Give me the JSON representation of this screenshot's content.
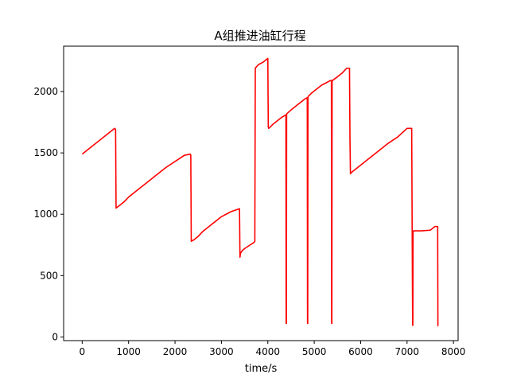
{
  "chart_data": {
    "type": "line",
    "title": "A组推进油缸行程",
    "xlabel": "time/s",
    "ylabel": "",
    "xlim": [
      -400,
      8100
    ],
    "ylim": [
      -30,
      2370
    ],
    "xticks": [
      0,
      1000,
      2000,
      3000,
      4000,
      5000,
      6000,
      7000,
      8000
    ],
    "yticks": [
      0,
      500,
      1000,
      1500,
      2000
    ],
    "grid": false,
    "line_color": "#ff0000",
    "series": [
      {
        "x": [
          0,
          700,
          720,
          730,
          800,
          900,
          1000,
          1100,
          1200,
          1400,
          1600,
          1800,
          1900,
          2000,
          2200,
          2330,
          2340,
          2350,
          2400,
          2500,
          2600,
          2700,
          2800,
          3000,
          3200,
          3390,
          3400,
          3410,
          3440,
          3500,
          3600,
          3700,
          3720,
          3730,
          3750,
          3800,
          3900,
          4000,
          4010,
          4020,
          4050,
          4100,
          4200,
          4300,
          4390,
          4395,
          4400,
          4405,
          4410,
          4500,
          4600,
          4700,
          4800,
          4850,
          4855,
          4860,
          4865,
          4870,
          4950,
          5050,
          5150,
          5250,
          5350,
          5370,
          5375,
          5380,
          5385,
          5390,
          5500,
          5600,
          5700,
          5760,
          5770,
          5780,
          5800,
          6000,
          6200,
          6400,
          6600,
          6800,
          7000,
          7100,
          7120,
          7125,
          7130,
          7135,
          7140,
          7300,
          7500,
          7600,
          7660,
          7665,
          7670
        ],
        "y": [
          1490,
          1700,
          1690,
          1050,
          1070,
          1100,
          1140,
          1170,
          1200,
          1260,
          1320,
          1380,
          1405,
          1430,
          1480,
          1490,
          1480,
          780,
          790,
          820,
          860,
          890,
          920,
          980,
          1020,
          1045,
          650,
          680,
          700,
          720,
          745,
          770,
          780,
          2190,
          2200,
          2220,
          2240,
          2270,
          1710,
          1700,
          1710,
          1730,
          1760,
          1790,
          1810,
          110,
          110,
          1810,
          1820,
          1850,
          1880,
          1910,
          1940,
          1950,
          110,
          110,
          1950,
          1960,
          1990,
          2020,
          2050,
          2070,
          2090,
          2090,
          110,
          110,
          2080,
          2090,
          2120,
          2150,
          2190,
          2190,
          1620,
          1330,
          1340,
          1400,
          1460,
          1520,
          1580,
          1630,
          1700,
          1700,
          95,
          95,
          860,
          860,
          865,
          865,
          870,
          900,
          900,
          90,
          90
        ]
      }
    ]
  }
}
